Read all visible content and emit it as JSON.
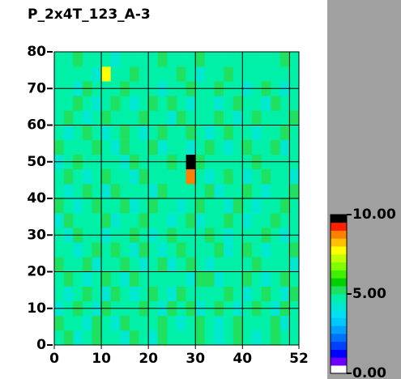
{
  "chart_data": {
    "type": "heatmap",
    "title": "P_2x4T_123_A-3",
    "xlim": [
      0,
      52
    ],
    "ylim": [
      0,
      80
    ],
    "xticks": [
      0,
      10,
      20,
      30,
      40,
      52
    ],
    "yticks": [
      0,
      10,
      20,
      30,
      40,
      50,
      60,
      70,
      80
    ],
    "xgrid": [
      10,
      20,
      30,
      40,
      50
    ],
    "ygrid": [
      10,
      20,
      30,
      40,
      50,
      60,
      70
    ],
    "xbins": [
      0,
      2,
      4,
      6,
      8,
      10,
      12,
      14,
      16,
      18,
      20,
      22,
      24,
      26,
      28,
      30,
      32,
      34,
      36,
      38,
      40,
      42,
      44,
      46,
      48,
      50,
      52
    ],
    "ybins": [
      0,
      4,
      8,
      12,
      16,
      20,
      24,
      28,
      32,
      36,
      40,
      44,
      48,
      52,
      56,
      60,
      64,
      68,
      72,
      76,
      80
    ],
    "colorscale": [
      "#ffffff",
      "#6a00ff",
      "#0000ff",
      "#0040ff",
      "#0070ff",
      "#00a0ff",
      "#00c8ff",
      "#00e0f0",
      "#00e8d0",
      "#00f0a8",
      "#20e060",
      "#00d000",
      "#40f000",
      "#80ff00",
      "#c0ff00",
      "#ffff00",
      "#ffc000",
      "#ff8000",
      "#ff2000",
      "#000000"
    ],
    "cblim": [
      0,
      10
    ],
    "cbticks": [
      {
        "value": 0,
        "label": "0.00"
      },
      {
        "value": 5,
        "label": "5.00"
      },
      {
        "value": 10,
        "label": "10.00"
      }
    ],
    "z": [
      [
        4.6,
        5.0,
        4.4,
        4.8,
        5.1,
        4.5,
        4.9,
        4.3,
        5.0,
        4.7,
        4.4,
        5.2,
        4.6,
        4.8,
        4.5,
        5.0,
        4.7,
        4.4,
        4.9,
        5.1,
        4.6,
        4.3,
        4.8,
        5.0,
        4.5,
        4.9
      ],
      [
        5.1,
        4.5,
        4.9,
        4.3,
        5.0,
        4.7,
        4.4,
        5.2,
        4.6,
        4.8,
        4.5,
        5.0,
        4.7,
        4.4,
        4.9,
        5.1,
        4.6,
        4.3,
        4.8,
        5.0,
        4.5,
        4.9,
        4.6,
        5.0,
        4.4,
        4.8
      ],
      [
        4.4,
        4.8,
        5.2,
        4.6,
        4.3,
        5.0,
        4.8,
        4.5,
        4.9,
        5.1,
        4.6,
        4.4,
        5.0,
        4.7,
        5.2,
        4.4,
        4.8,
        5.0,
        4.5,
        4.3,
        4.9,
        5.1,
        4.7,
        4.4,
        5.0,
        4.6
      ],
      [
        4.9,
        4.3,
        4.7,
        5.0,
        4.6,
        4.4,
        5.1,
        4.8,
        4.4,
        4.6,
        5.0,
        4.8,
        4.3,
        5.1,
        4.6,
        4.9,
        4.5,
        4.7,
        5.2,
        4.6,
        4.4,
        4.8,
        5.0,
        4.6,
        4.3,
        5.1
      ],
      [
        4.7,
        5.1,
        4.5,
        4.4,
        4.9,
        5.2,
        4.6,
        4.3,
        5.0,
        4.8,
        4.7,
        4.5,
        4.9,
        4.6,
        4.4,
        5.0,
        5.1,
        4.4,
        4.6,
        4.9,
        5.0,
        4.5,
        4.4,
        4.8,
        5.1,
        4.6
      ],
      [
        5.0,
        4.6,
        4.8,
        5.1,
        4.4,
        4.7,
        4.5,
        5.0,
        4.6,
        4.3,
        4.9,
        5.1,
        4.4,
        4.8,
        5.0,
        4.6,
        4.3,
        4.9,
        4.7,
        4.5,
        4.8,
        5.0,
        4.6,
        4.9,
        4.7,
        4.4
      ],
      [
        4.5,
        4.9,
        4.4,
        4.7,
        5.0,
        4.6,
        5.2,
        4.8,
        4.4,
        5.0,
        4.6,
        4.3,
        4.8,
        5.0,
        4.7,
        4.5,
        4.9,
        5.1,
        4.4,
        4.6,
        5.0,
        4.7,
        4.3,
        4.5,
        4.9,
        5.0
      ],
      [
        4.8,
        4.4,
        5.0,
        4.6,
        4.8,
        4.3,
        4.7,
        4.9,
        5.1,
        4.5,
        4.4,
        4.8,
        5.2,
        4.5,
        4.6,
        4.8,
        5.0,
        4.6,
        4.3,
        4.8,
        4.5,
        4.9,
        5.1,
        4.7,
        4.4,
        4.8
      ],
      [
        4.3,
        5.0,
        4.6,
        4.9,
        4.5,
        5.1,
        4.4,
        4.6,
        4.8,
        5.0,
        4.7,
        4.6,
        4.4,
        4.9,
        5.1,
        4.3,
        4.7,
        4.5,
        5.0,
        4.9,
        4.4,
        4.6,
        4.8,
        5.0,
        4.6,
        4.5
      ],
      [
        5.1,
        4.7,
        4.3,
        4.5,
        5.0,
        4.8,
        4.6,
        5.0,
        4.4,
        4.7,
        5.1,
        4.9,
        4.6,
        4.4,
        4.8,
        5.0,
        4.6,
        4.8,
        4.4,
        5.1,
        4.7,
        4.3,
        4.9,
        4.6,
        5.0,
        4.7
      ],
      [
        4.6,
        4.4,
        4.9,
        5.1,
        4.7,
        4.4,
        5.0,
        4.5,
        4.9,
        4.6,
        4.3,
        5.0,
        4.8,
        4.6,
        4.5,
        4.9,
        5.2,
        4.4,
        4.7,
        4.5,
        5.0,
        4.8,
        4.4,
        4.9,
        4.5,
        5.1
      ],
      [
        4.9,
        5.0,
        4.6,
        4.4,
        4.8,
        5.0,
        4.6,
        4.8,
        4.3,
        5.1,
        4.8,
        4.5,
        4.7,
        4.9,
        8.6,
        4.6,
        4.4,
        4.9,
        5.0,
        4.6,
        4.3,
        4.7,
        5.0,
        4.5,
        4.8,
        4.4
      ],
      [
        4.4,
        4.8,
        5.1,
        4.7,
        4.5,
        4.6,
        4.9,
        4.4,
        5.0,
        4.7,
        4.5,
        4.9,
        5.0,
        4.6,
        10,
        5.0,
        4.7,
        4.5,
        4.8,
        4.9,
        4.6,
        5.0,
        4.5,
        4.7,
        4.9,
        4.6
      ],
      [
        5.0,
        4.6,
        4.5,
        4.9,
        5.1,
        4.7,
        4.4,
        5.0,
        4.6,
        4.8,
        5.0,
        4.4,
        4.6,
        4.8,
        4.4,
        4.9,
        5.1,
        4.6,
        4.4,
        4.7,
        5.1,
        4.6,
        4.8,
        5.0,
        4.4,
        4.8
      ],
      [
        4.7,
        4.3,
        4.9,
        5.0,
        4.6,
        4.4,
        4.8,
        5.2,
        4.7,
        4.4,
        4.6,
        5.1,
        4.8,
        4.5,
        5.0,
        4.6,
        4.3,
        4.8,
        5.0,
        4.5,
        4.8,
        4.4,
        4.9,
        4.6,
        5.1,
        4.5
      ],
      [
        4.5,
        5.0,
        4.7,
        4.4,
        4.9,
        5.1,
        4.6,
        4.5,
        4.9,
        5.0,
        4.8,
        4.6,
        4.4,
        5.0,
        4.7,
        4.5,
        4.9,
        5.0,
        4.6,
        4.4,
        4.9,
        5.1,
        4.5,
        4.7,
        4.6,
        5.0
      ],
      [
        4.8,
        4.6,
        5.0,
        4.7,
        4.4,
        4.8,
        5.3,
        4.6,
        4.4,
        4.7,
        5.0,
        4.8,
        5.1,
        4.6,
        4.4,
        4.9,
        4.7,
        4.4,
        4.9,
        5.0,
        4.6,
        4.8,
        4.4,
        5.0,
        4.9,
        4.6
      ],
      [
        4.6,
        4.9,
        4.4,
        5.1,
        4.8,
        4.5,
        4.9,
        5.0,
        4.6,
        4.5,
        4.8,
        4.4,
        4.9,
        4.7,
        5.0,
        4.6,
        4.8,
        5.1,
        4.5,
        4.7,
        4.4,
        4.9,
        5.0,
        4.6,
        4.4,
        4.8
      ],
      [
        4.9,
        4.5,
        4.8,
        4.6,
        4.4,
        7.6,
        4.6,
        4.8,
        5.0,
        4.9,
        4.5,
        4.7,
        4.6,
        5.0,
        4.8,
        4.4,
        4.6,
        4.7,
        5.0,
        4.8,
        4.6,
        4.5,
        4.7,
        4.9,
        4.8,
        4.5
      ],
      [
        4.5,
        4.8,
        5.0,
        4.7,
        4.9,
        4.6,
        4.4,
        4.7,
        4.8,
        4.6,
        4.9,
        5.0,
        4.5,
        4.8,
        4.6,
        5.0,
        4.5,
        4.8,
        4.6,
        4.5,
        4.9,
        4.7,
        4.6,
        4.8,
        5.0,
        4.7
      ]
    ]
  }
}
